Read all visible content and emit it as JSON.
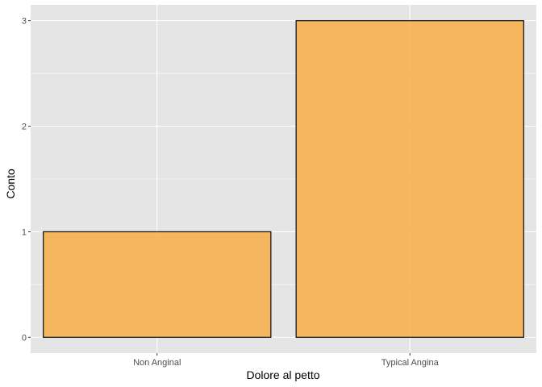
{
  "chart_data": {
    "type": "bar",
    "title": "",
    "xlabel": "Dolore al petto",
    "ylabel": "Conto",
    "categories": [
      "Non Anginal",
      "Typical Angina"
    ],
    "values": [
      1,
      3
    ],
    "ylim": [
      -0.15,
      3.15
    ],
    "yticks": [
      "0",
      "1",
      "2",
      "3"
    ],
    "grid": true,
    "legend": "none",
    "colors": {
      "panel_background": "#e5e5e5",
      "grid_major": "#ffffff",
      "bar_fill": "#f5b151",
      "bar_stroke": "#1a1a1a"
    }
  }
}
